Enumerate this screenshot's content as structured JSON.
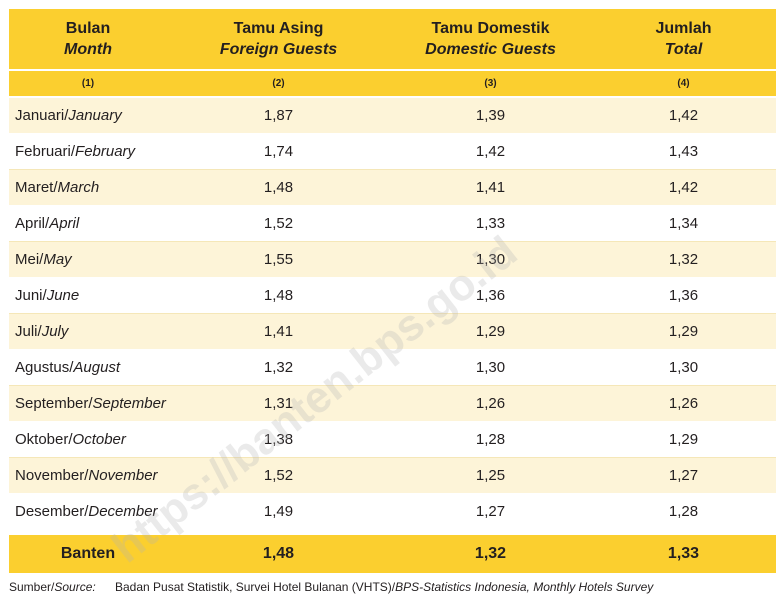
{
  "header": {
    "month": {
      "id": "Bulan",
      "en": "Month"
    },
    "foreign": {
      "id": "Tamu Asing",
      "en": "Foreign Guests"
    },
    "domestic": {
      "id": "Tamu Domestik",
      "en": "Domestic Guests"
    },
    "total": {
      "id": "Jumlah",
      "en": "Total"
    },
    "col_numbers": [
      "(1)",
      "(2)",
      "(3)",
      "(4)"
    ]
  },
  "rows": [
    {
      "month_id": "Januari/",
      "month_en": "January",
      "foreign": "1,87",
      "domestic": "1,39",
      "total": "1,42"
    },
    {
      "month_id": "Februari/",
      "month_en": "February",
      "foreign": "1,74",
      "domestic": "1,42",
      "total": "1,43"
    },
    {
      "month_id": "Maret/",
      "month_en": "March",
      "foreign": "1,48",
      "domestic": "1,41",
      "total": "1,42"
    },
    {
      "month_id": "April/",
      "month_en": "April",
      "foreign": "1,52",
      "domestic": "1,33",
      "total": "1,34"
    },
    {
      "month_id": "Mei/",
      "month_en": "May",
      "foreign": "1,55",
      "domestic": "1,30",
      "total": "1,32"
    },
    {
      "month_id": "Juni/",
      "month_en": "June",
      "foreign": "1,48",
      "domestic": "1,36",
      "total": "1,36"
    },
    {
      "month_id": "Juli/",
      "month_en": "July",
      "foreign": "1,41",
      "domestic": "1,29",
      "total": "1,29"
    },
    {
      "month_id": "Agustus/",
      "month_en": "August",
      "foreign": "1,32",
      "domestic": "1,30",
      "total": "1,30"
    },
    {
      "month_id": "September/",
      "month_en": "September",
      "foreign": "1,31",
      "domestic": "1,26",
      "total": "1,26"
    },
    {
      "month_id": "Oktober/",
      "month_en": "October",
      "foreign": "1,38",
      "domestic": "1,28",
      "total": "1,29"
    },
    {
      "month_id": "November/",
      "month_en": "November",
      "foreign": "1,52",
      "domestic": "1,25",
      "total": "1,27"
    },
    {
      "month_id": "Desember/",
      "month_en": "December",
      "foreign": "1,49",
      "domestic": "1,27",
      "total": "1,28"
    }
  ],
  "footer": {
    "label": "Banten",
    "foreign": "1,48",
    "domestic": "1,32",
    "total": "1,33"
  },
  "source": {
    "label_id": "Sumber/",
    "label_en": "Source:",
    "text_id": "Badan Pusat Statistik, Survei Hotel Bulanan (VHTS)/",
    "text_en": "BPS-Statistics Indonesia, Monthly Hotels Survey"
  },
  "watermark": "https://banten.bps.go.id",
  "colors": {
    "header": "#fbcf2f",
    "stripe": "#fdf4d8"
  }
}
